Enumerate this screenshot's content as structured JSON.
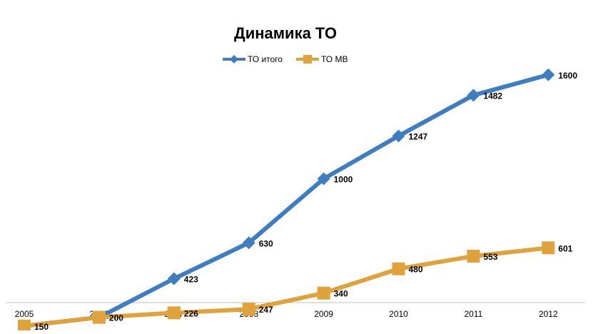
{
  "chart_data": {
    "type": "line",
    "title": "Динамика ТО",
    "x": [
      "2005",
      "2006",
      "2007",
      "2008",
      "2009",
      "2010",
      "2011",
      "2012"
    ],
    "ylim": [
      0,
      1600
    ],
    "grid": false,
    "legend": "top",
    "series": [
      {
        "name": "ТО итого",
        "color": "#3E7DBF",
        "marker": "diamond",
        "values": [
          150,
          200,
          423,
          630,
          1000,
          1247,
          1482,
          1600
        ],
        "labels": [
          "150",
          "200",
          "423",
          "630",
          "1000",
          "1247",
          "1482",
          "1600"
        ]
      },
      {
        "name": "ТО МВ",
        "color": "#E0A23A",
        "marker": "square",
        "values": [
          150,
          200,
          226,
          247,
          340,
          480,
          553,
          601
        ],
        "labels": [
          "150",
          "200",
          "226",
          "247",
          "340",
          "480",
          "553",
          "601"
        ]
      }
    ]
  }
}
